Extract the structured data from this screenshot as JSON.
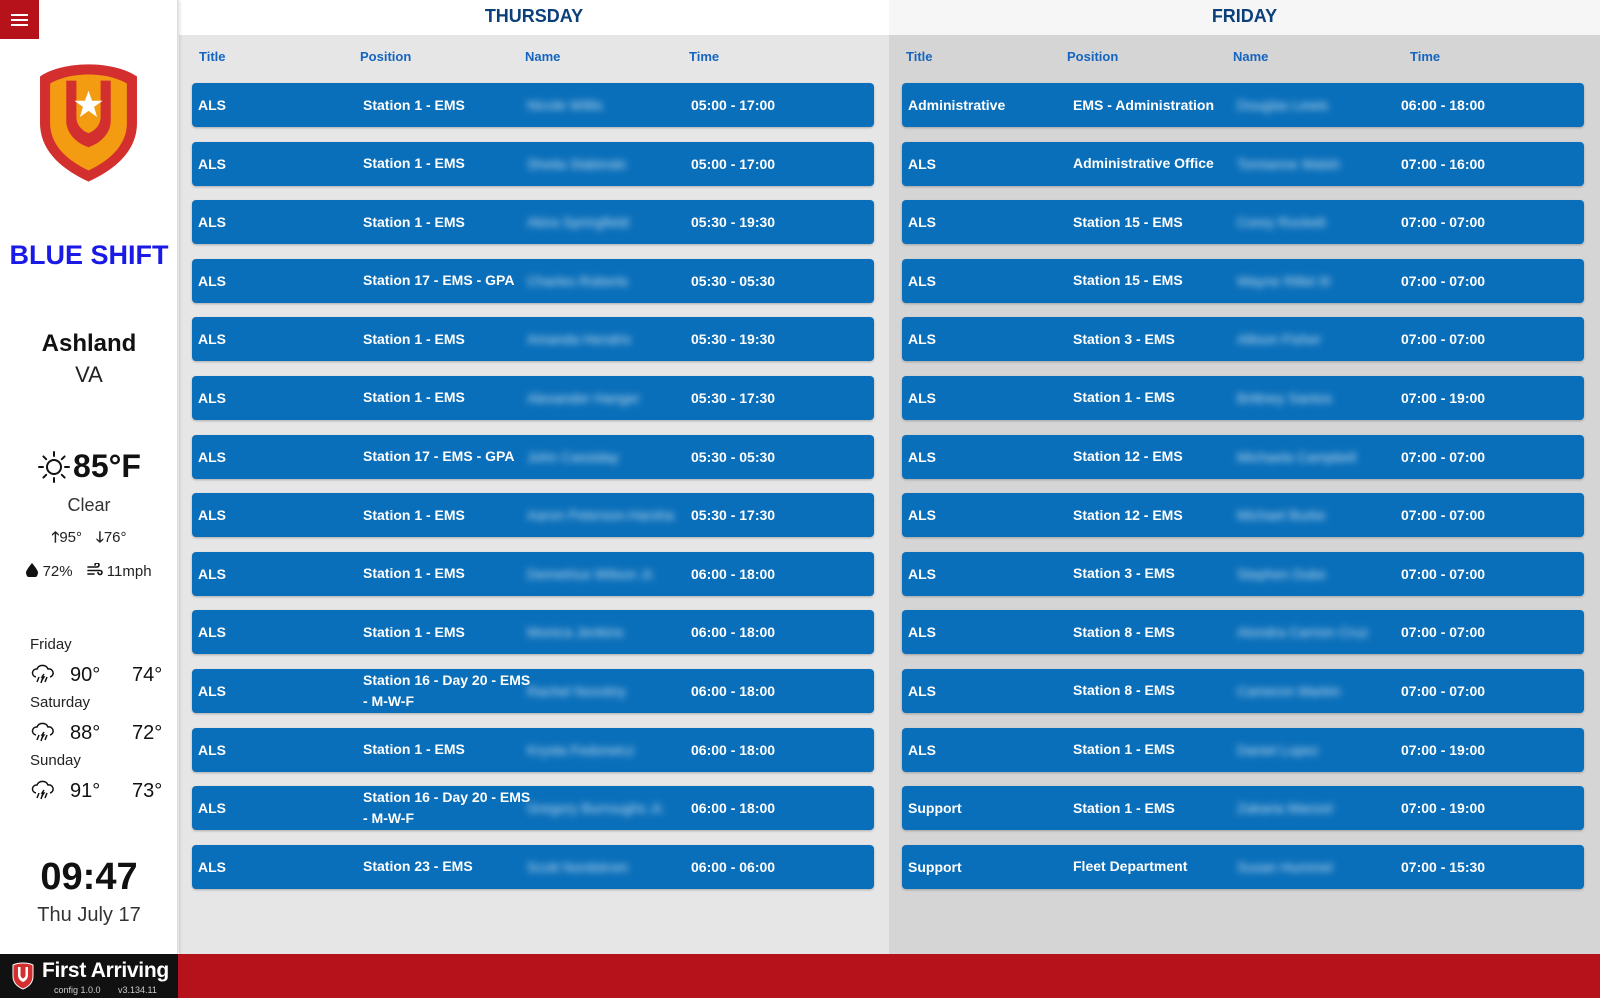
{
  "sidebar": {
    "shift_name": "BLUE SHIFT",
    "city": "Ashland",
    "state": "VA",
    "weather": {
      "temp": "85°F",
      "condition": "Clear",
      "high": "95°",
      "low": "76°",
      "humidity": "72%",
      "wind": "11mph",
      "icon": "sun-icon"
    },
    "forecast": [
      {
        "day": "Friday",
        "high": "90°",
        "low": "74°",
        "icon": "rain-cloud-icon"
      },
      {
        "day": "Saturday",
        "high": "88°",
        "low": "72°",
        "icon": "rain-cloud-icon"
      },
      {
        "day": "Sunday",
        "high": "91°",
        "low": "73°",
        "icon": "rain-cloud-icon"
      }
    ],
    "time": "09:47",
    "date": "Thu July 17"
  },
  "footer": {
    "brand": "First Arriving",
    "config": "config 1.0.0",
    "version": "v3.134.11"
  },
  "columns": {
    "title": "Title",
    "position": "Position",
    "name": "Name",
    "time": "Time"
  },
  "days": [
    {
      "label": "THURSDAY",
      "rows": [
        {
          "title": "ALS",
          "position": "Station 1 - EMS",
          "name": "Nicole Willis",
          "time": "05:00 - 17:00"
        },
        {
          "title": "ALS",
          "position": "Station 1 - EMS",
          "name": "Sheila Slabinski",
          "time": "05:00 - 17:00"
        },
        {
          "title": "ALS",
          "position": "Station 1 - EMS",
          "name": "Akira Springfield",
          "time": "05:30 - 19:30"
        },
        {
          "title": "ALS",
          "position": "Station 17 - EMS - GPA",
          "name": "Charles Roberts",
          "time": "05:30 - 05:30"
        },
        {
          "title": "ALS",
          "position": "Station 1 - EMS",
          "name": "Amanda Hendrix",
          "time": "05:30 - 19:30"
        },
        {
          "title": "ALS",
          "position": "Station 1 - EMS",
          "name": "Alexander Hanger",
          "time": "05:30 - 17:30"
        },
        {
          "title": "ALS",
          "position": "Station 17 - EMS - GPA",
          "name": "John Cassiday",
          "time": "05:30 - 05:30"
        },
        {
          "title": "ALS",
          "position": "Station 1 - EMS",
          "name": "Aaron Peterson-Harsha",
          "time": "05:30 - 17:30"
        },
        {
          "title": "ALS",
          "position": "Station 1 - EMS",
          "name": "Demetrius Wilson Jr.",
          "time": "06:00 - 18:00"
        },
        {
          "title": "ALS",
          "position": "Station 1 - EMS",
          "name": "Monica Jenkins",
          "time": "06:00 - 18:00"
        },
        {
          "title": "ALS",
          "position": "Station 16 - Day 20 - EMS - M-W-F",
          "name": "Rachel Novotny",
          "time": "06:00 - 18:00"
        },
        {
          "title": "ALS",
          "position": "Station 1 - EMS",
          "name": "Krysta Fedorwicz",
          "time": "06:00 - 18:00"
        },
        {
          "title": "ALS",
          "position": "Station 16 - Day 20 - EMS - M-W-F",
          "name": "Gregory Burroughs Jr.",
          "time": "06:00 - 18:00"
        },
        {
          "title": "ALS",
          "position": "Station 23 - EMS",
          "name": "Scott Nordstrom",
          "time": "06:00 - 06:00"
        }
      ]
    },
    {
      "label": "FRIDAY",
      "rows": [
        {
          "title": "Administrative",
          "position": "EMS - Administration",
          "name": "Douglas Lewis",
          "time": "06:00 - 18:00"
        },
        {
          "title": "ALS",
          "position": "Administrative Office",
          "name": "Tomianne Walsh",
          "time": "07:00 - 16:00"
        },
        {
          "title": "ALS",
          "position": "Station 15 - EMS",
          "name": "Corey Rockett",
          "time": "07:00 - 07:00"
        },
        {
          "title": "ALS",
          "position": "Station 15 - EMS",
          "name": "Wayne Rillet III",
          "time": "07:00 - 07:00"
        },
        {
          "title": "ALS",
          "position": "Station 3 - EMS",
          "name": "Allison Fisher",
          "time": "07:00 - 07:00"
        },
        {
          "title": "ALS",
          "position": "Station 1 - EMS",
          "name": "Brittney Santos",
          "time": "07:00 - 19:00"
        },
        {
          "title": "ALS",
          "position": "Station 12 - EMS",
          "name": "Michaela Campbell",
          "time": "07:00 - 07:00"
        },
        {
          "title": "ALS",
          "position": "Station 12 - EMS",
          "name": "Michael Burke",
          "time": "07:00 - 07:00"
        },
        {
          "title": "ALS",
          "position": "Station 3 - EMS",
          "name": "Stephen Duke",
          "time": "07:00 - 07:00"
        },
        {
          "title": "ALS",
          "position": "Station 8 - EMS",
          "name": "Alondra Carrion Cruz",
          "time": "07:00 - 07:00"
        },
        {
          "title": "ALS",
          "position": "Station 8 - EMS",
          "name": "Cameron Markin",
          "time": "07:00 - 07:00"
        },
        {
          "title": "ALS",
          "position": "Station 1 - EMS",
          "name": "Daniel Lopez",
          "time": "07:00 - 19:00"
        },
        {
          "title": "Support",
          "position": "Station 1 - EMS",
          "name": "Zakaria Manzel",
          "time": "07:00 - 19:00"
        },
        {
          "title": "Support",
          "position": "Fleet Department",
          "name": "Susan Hummel",
          "time": "07:00 - 15:30"
        }
      ]
    }
  ],
  "colors": {
    "accent_red": "#b5121b",
    "row_blue": "#0a6fba",
    "header_blue": "#0b3f7a",
    "shift_blue": "#1a1ae6"
  }
}
